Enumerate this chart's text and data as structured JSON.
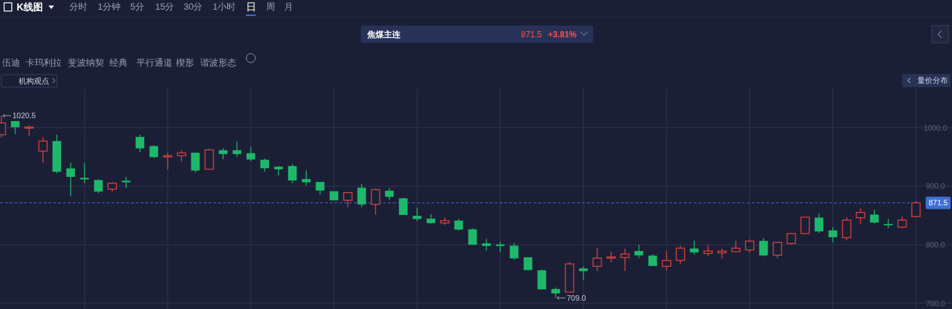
{
  "chart_data": {
    "type": "candlestick",
    "title": "焦煤主连",
    "categories": [
      null,
      null,
      null,
      null,
      null,
      null,
      null,
      null,
      null,
      null,
      null,
      null,
      null,
      null,
      null,
      null,
      null,
      null,
      null,
      null,
      null,
      null,
      null,
      null,
      null,
      null,
      null,
      null,
      null,
      null,
      null,
      null,
      null,
      null,
      null,
      null,
      null,
      null,
      null,
      null,
      null,
      null,
      null,
      null,
      null,
      null,
      null,
      null,
      null,
      null,
      null,
      null,
      null,
      null,
      null,
      null,
      null,
      null,
      null,
      null,
      null,
      null,
      null,
      null,
      null,
      null,
      null
    ],
    "ohlc": [
      [
        988,
        1020.5,
        983,
        1008
      ],
      [
        1011,
        1011,
        989,
        1001
      ],
      [
        1000,
        1004,
        986,
        1001
      ],
      [
        960,
        984,
        940,
        977
      ],
      [
        977,
        988,
        922,
        925
      ],
      [
        930,
        940,
        883,
        916
      ],
      [
        914,
        940,
        905,
        912
      ],
      [
        910,
        912,
        888,
        891
      ],
      [
        895,
        907,
        891,
        905
      ],
      [
        909,
        916,
        897,
        907
      ],
      [
        984,
        988,
        958,
        965
      ],
      [
        968,
        970,
        948,
        950
      ],
      [
        950,
        957,
        928,
        952
      ],
      [
        952,
        961,
        942,
        957
      ],
      [
        957,
        957,
        923,
        927
      ],
      [
        929,
        964,
        929,
        962
      ],
      [
        961,
        965,
        946,
        955
      ],
      [
        961,
        976,
        950,
        955
      ],
      [
        956,
        967,
        943,
        946
      ],
      [
        945,
        947,
        925,
        931
      ],
      [
        933,
        935,
        918,
        929
      ],
      [
        934,
        938,
        905,
        910
      ],
      [
        912,
        927,
        901,
        907
      ],
      [
        907,
        907,
        886,
        893
      ],
      [
        891,
        891,
        876,
        876
      ],
      [
        876,
        890,
        864,
        889
      ],
      [
        897,
        904,
        864,
        869
      ],
      [
        869,
        896,
        851,
        894
      ],
      [
        892,
        897,
        876,
        882
      ],
      [
        879,
        880,
        851,
        851
      ],
      [
        849,
        863,
        840,
        844
      ],
      [
        844,
        852,
        836,
        837
      ],
      [
        837,
        847,
        834,
        841
      ],
      [
        841,
        844,
        824,
        826
      ],
      [
        826,
        828,
        800,
        800
      ],
      [
        802,
        810,
        790,
        798
      ],
      [
        800,
        805,
        787,
        798
      ],
      [
        798,
        803,
        774,
        777
      ],
      [
        778,
        778,
        756,
        757
      ],
      [
        756,
        757,
        724,
        724
      ],
      [
        724,
        727,
        709,
        717
      ],
      [
        719,
        770,
        719,
        767
      ],
      [
        759,
        763,
        740,
        755
      ],
      [
        763,
        794,
        756,
        777
      ],
      [
        777,
        788,
        770,
        779
      ],
      [
        778,
        793,
        755,
        784
      ],
      [
        789,
        800,
        777,
        782
      ],
      [
        781,
        783,
        764,
        764
      ],
      [
        763,
        789,
        756,
        773
      ],
      [
        773,
        798,
        767,
        794
      ],
      [
        793,
        807,
        783,
        787
      ],
      [
        785,
        800,
        780,
        789
      ],
      [
        786,
        793,
        776,
        789
      ],
      [
        788,
        807,
        788,
        794
      ],
      [
        791,
        809,
        786,
        806
      ],
      [
        806,
        811,
        780,
        782
      ],
      [
        782,
        804,
        777,
        804
      ],
      [
        802,
        819,
        800,
        819
      ],
      [
        819,
        847,
        819,
        847
      ],
      [
        846,
        853,
        820,
        823
      ],
      [
        824,
        830,
        804,
        813
      ],
      [
        812,
        847,
        808,
        842
      ],
      [
        846,
        862,
        835,
        855
      ],
      [
        851,
        860,
        836,
        838
      ],
      [
        835,
        844,
        828,
        834
      ],
      [
        830,
        848,
        828,
        842
      ],
      [
        848,
        875,
        847,
        871.5
      ]
    ],
    "ylim": [
      690,
      1067
    ],
    "yticks": [
      {
        "value": 700,
        "label": "700.0"
      },
      {
        "value": 800,
        "label": "800.0"
      },
      {
        "value": 900,
        "label": "900.0"
      },
      {
        "value": 1000,
        "label": "1000.0"
      }
    ],
    "grid": true,
    "ref_lines": [
      {
        "axis": "y",
        "value": 871.5,
        "label": "871.5",
        "color": "#3d6fd6",
        "line_style": "dashed"
      }
    ],
    "annotations": [
      "K线图",
      "分时",
      "1分钟",
      "5分",
      "15分",
      "30分",
      "1小时",
      "日",
      "周",
      "月",
      "871.5",
      "+3.81%",
      "伍迪",
      "卡玛利拉",
      "斐波纳契",
      "经典",
      "平行通道",
      "楔形",
      "谐波形态",
      "机构观点",
      "量价分布",
      "1020.5",
      "709.0"
    ]
  }
}
